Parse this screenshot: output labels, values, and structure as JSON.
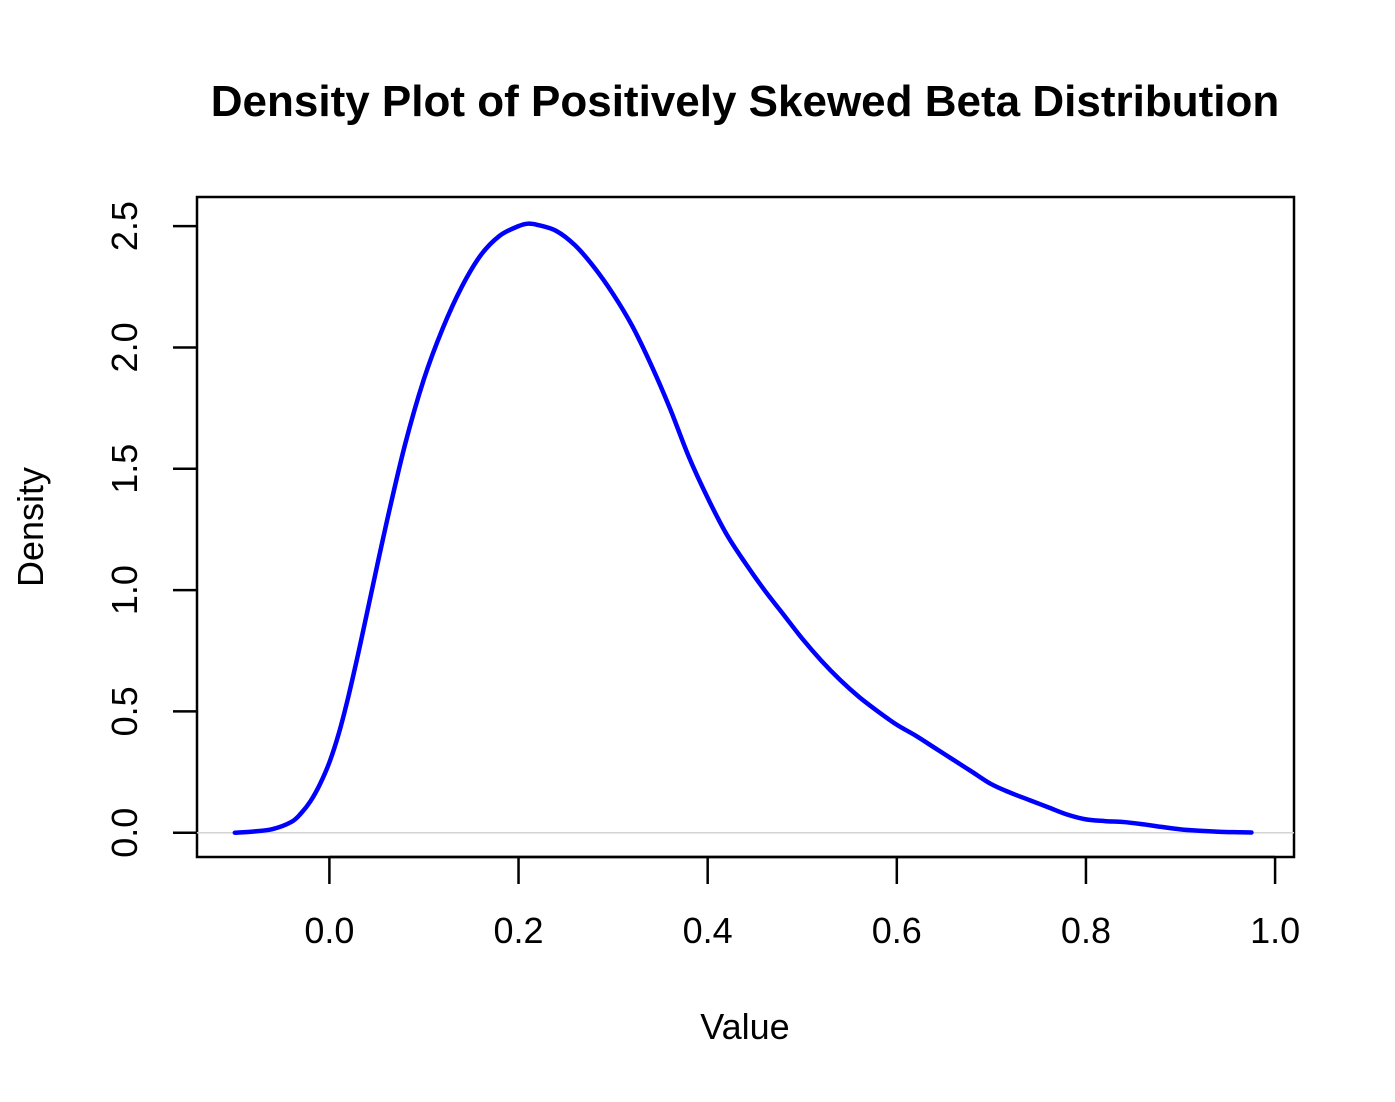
{
  "chart_data": {
    "type": "line",
    "title": "Density Plot of Positively Skewed Beta Distribution",
    "xlabel": "Value",
    "ylabel": "Density",
    "xlim": [
      -0.14,
      1.02
    ],
    "ylim": [
      -0.1,
      2.62
    ],
    "x_ticks": [
      0.0,
      0.2,
      0.4,
      0.6,
      0.8,
      1.0
    ],
    "x_tick_labels": [
      "0.0",
      "0.2",
      "0.4",
      "0.6",
      "0.8",
      "1.0"
    ],
    "y_ticks": [
      0.0,
      0.5,
      1.0,
      1.5,
      2.0,
      2.5
    ],
    "y_tick_labels": [
      "0.0",
      "0.5",
      "1.0",
      "1.5",
      "2.0",
      "2.5"
    ],
    "grid": false,
    "baseline": {
      "y": 0,
      "color": "#d3d3d3"
    },
    "series": [
      {
        "color": "#0000ff",
        "x": [
          -0.1,
          -0.08,
          -0.06,
          -0.04,
          -0.03,
          -0.02,
          -0.01,
          0.0,
          0.01,
          0.02,
          0.03,
          0.04,
          0.06,
          0.08,
          0.1,
          0.12,
          0.14,
          0.16,
          0.18,
          0.2,
          0.21,
          0.22,
          0.24,
          0.26,
          0.28,
          0.3,
          0.32,
          0.34,
          0.36,
          0.38,
          0.4,
          0.42,
          0.44,
          0.46,
          0.48,
          0.5,
          0.52,
          0.54,
          0.56,
          0.58,
          0.6,
          0.62,
          0.64,
          0.66,
          0.68,
          0.7,
          0.72,
          0.74,
          0.76,
          0.78,
          0.8,
          0.82,
          0.84,
          0.86,
          0.88,
          0.9,
          0.92,
          0.94,
          0.96,
          0.975
        ],
        "y": [
          0.0,
          0.005,
          0.015,
          0.045,
          0.08,
          0.13,
          0.2,
          0.29,
          0.41,
          0.56,
          0.73,
          0.91,
          1.27,
          1.6,
          1.87,
          2.08,
          2.25,
          2.38,
          2.46,
          2.5,
          2.51,
          2.505,
          2.48,
          2.42,
          2.33,
          2.22,
          2.09,
          1.93,
          1.75,
          1.55,
          1.38,
          1.23,
          1.11,
          1.0,
          0.9,
          0.8,
          0.71,
          0.63,
          0.56,
          0.5,
          0.445,
          0.4,
          0.35,
          0.3,
          0.25,
          0.2,
          0.165,
          0.135,
          0.105,
          0.075,
          0.055,
          0.048,
          0.044,
          0.035,
          0.024,
          0.014,
          0.008,
          0.004,
          0.002,
          0.001
        ]
      }
    ]
  }
}
